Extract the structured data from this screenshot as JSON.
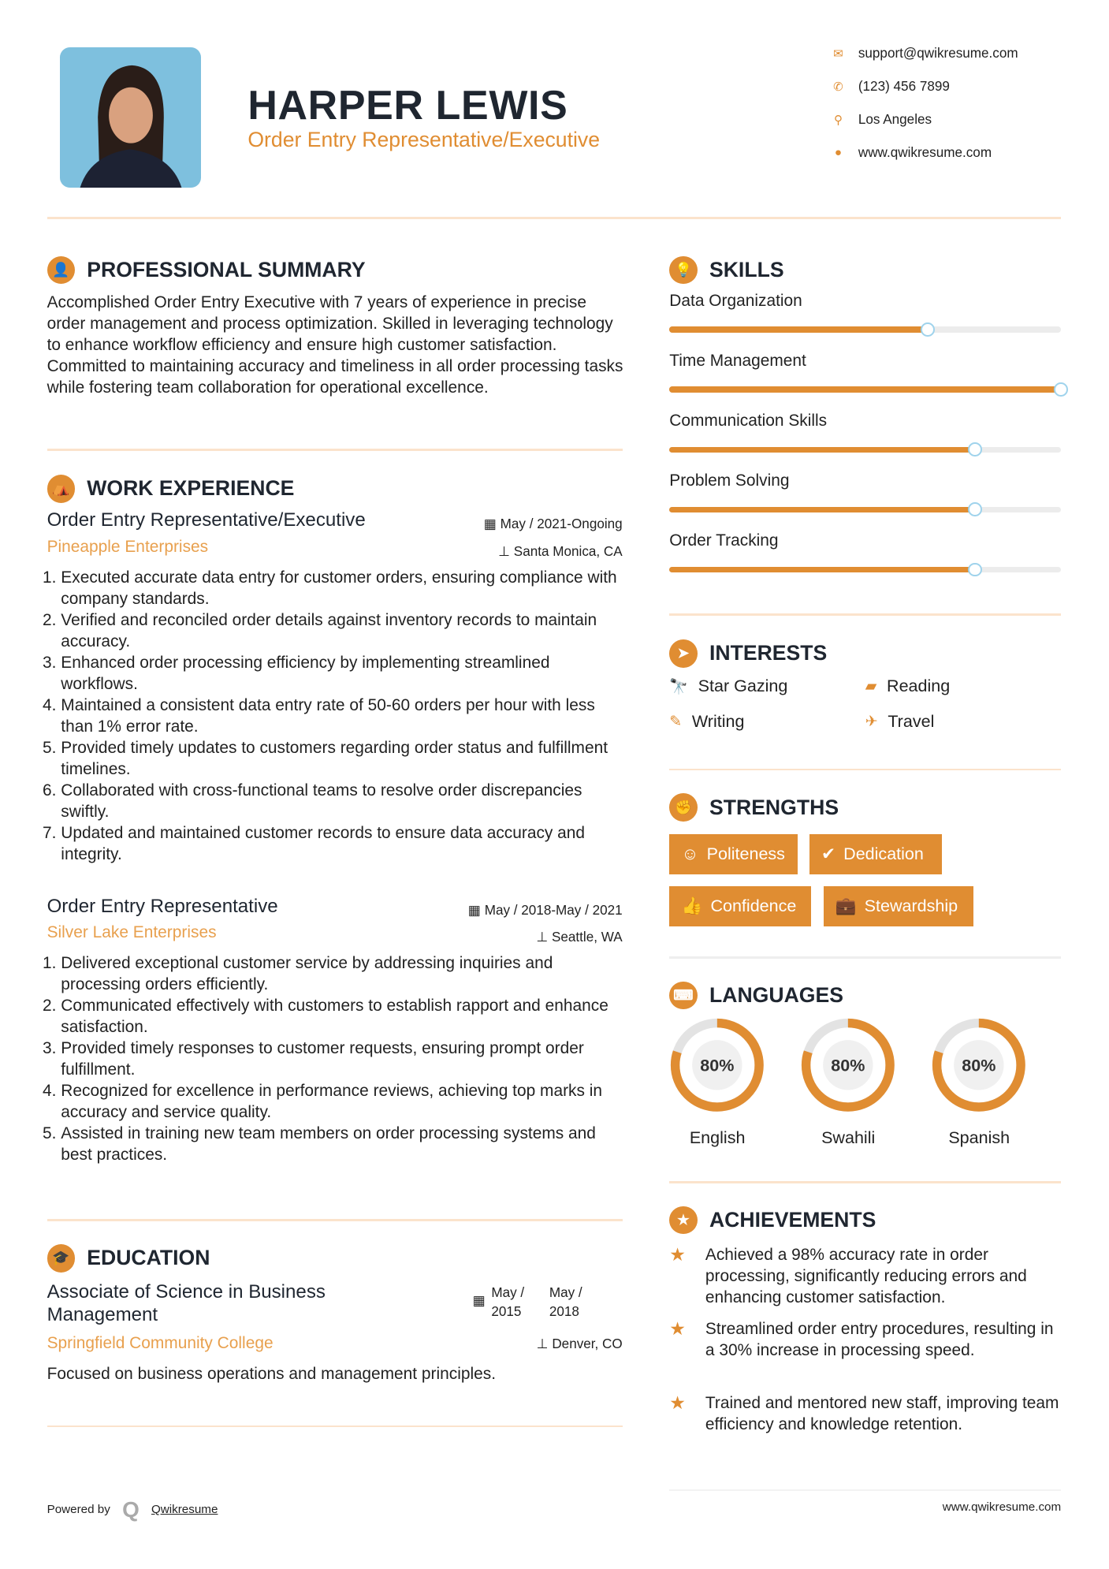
{
  "header": {
    "name": "HARPER LEWIS",
    "title": "Order Entry Representative/Executive",
    "contacts": [
      {
        "icon": "envelope-icon",
        "text": "support@qwikresume.com"
      },
      {
        "icon": "phone-icon",
        "text": "(123) 456 7899"
      },
      {
        "icon": "map-pin-icon",
        "text": "Los Angeles"
      },
      {
        "icon": "globe-icon",
        "text": "www.qwikresume.com"
      }
    ]
  },
  "accent_color": "#e08d32",
  "summary": {
    "heading": "PROFESSIONAL SUMMARY",
    "text": "Accomplished Order Entry Executive with 7 years of experience in precise order management and process optimization. Skilled in leveraging technology to enhance workflow efficiency and ensure high customer satisfaction. Committed to maintaining accuracy and timeliness in all order processing tasks while fostering team collaboration for operational excellence."
  },
  "work": {
    "heading": "WORK EXPERIENCE",
    "jobs": [
      {
        "title": "Order Entry Representative/Executive",
        "company": "Pineapple Enterprises",
        "date": "May / 2021-Ongoing",
        "location": "Santa Monica, CA",
        "bullets": [
          "Executed accurate data entry for customer orders, ensuring compliance with company standards.",
          "Verified and reconciled order details against inventory records to maintain accuracy.",
          "Enhanced order processing efficiency by implementing streamlined workflows.",
          "Maintained a consistent data entry rate of 50-60 orders per hour with less than 1% error rate.",
          "Provided timely updates to customers regarding order status and fulfillment timelines.",
          "Collaborated with cross-functional teams to resolve order discrepancies swiftly.",
          "Updated and maintained customer records to ensure data accuracy and integrity."
        ]
      },
      {
        "title": "Order Entry Representative",
        "company": "Silver Lake Enterprises",
        "date": "May / 2018-May / 2021",
        "location": "Seattle, WA",
        "bullets": [
          "Delivered exceptional customer service by addressing inquiries and processing orders efficiently.",
          "Communicated effectively with customers to establish rapport and enhance satisfaction.",
          "Provided timely responses to customer requests, ensuring prompt order fulfillment.",
          "Recognized for excellence in performance reviews, achieving top marks in accuracy and service quality.",
          "Assisted in training new team members on order processing systems and best practices."
        ]
      }
    ]
  },
  "education": {
    "heading": "EDUCATION",
    "degree": "Associate of Science in Business Management",
    "school": "Springfield Community College",
    "start": "May / 2015",
    "end": "May / 2018",
    "location": "Denver, CO",
    "text": "Focused on business operations and management principles."
  },
  "skills": {
    "heading": "SKILLS",
    "items": [
      {
        "label": "Data Organization",
        "level": 66
      },
      {
        "label": "Time Management",
        "level": 100
      },
      {
        "label": "Communication Skills",
        "level": 78
      },
      {
        "label": "Problem Solving",
        "level": 78
      },
      {
        "label": "Order Tracking",
        "level": 78
      }
    ]
  },
  "interests": {
    "heading": "INTERESTS",
    "items": [
      {
        "label": "Star Gazing",
        "icon": "telescope-icon"
      },
      {
        "label": "Reading",
        "icon": "book-icon"
      },
      {
        "label": "Writing",
        "icon": "pencil-icon"
      },
      {
        "label": "Travel",
        "icon": "plane-icon"
      }
    ]
  },
  "strengths": {
    "heading": "STRENGTHS",
    "items": [
      {
        "label": "Politeness",
        "icon": "smile-icon"
      },
      {
        "label": "Dedication",
        "icon": "check-circle-icon"
      },
      {
        "label": "Confidence",
        "icon": "thumbs-up-icon"
      },
      {
        "label": "Stewardship",
        "icon": "briefcase-icon"
      }
    ]
  },
  "languages": {
    "heading": "LANGUAGES",
    "items": [
      {
        "label": "English",
        "percent": 80,
        "text": "80%"
      },
      {
        "label": "Swahili",
        "percent": 80,
        "text": "80%"
      },
      {
        "label": "Spanish",
        "percent": 80,
        "text": "80%"
      }
    ]
  },
  "achievements": {
    "heading": "ACHIEVEMENTS",
    "items": [
      "Achieved a 98% accuracy rate in order processing, significantly reducing errors and enhancing customer satisfaction.",
      "Streamlined order entry procedures, resulting in a 30% increase in processing speed.",
      "Trained and mentored new staff, improving team efficiency and knowledge retention."
    ]
  },
  "footer": {
    "powered_by": "Powered by",
    "brand": "Qwikresume",
    "url": "www.qwikresume.com"
  }
}
